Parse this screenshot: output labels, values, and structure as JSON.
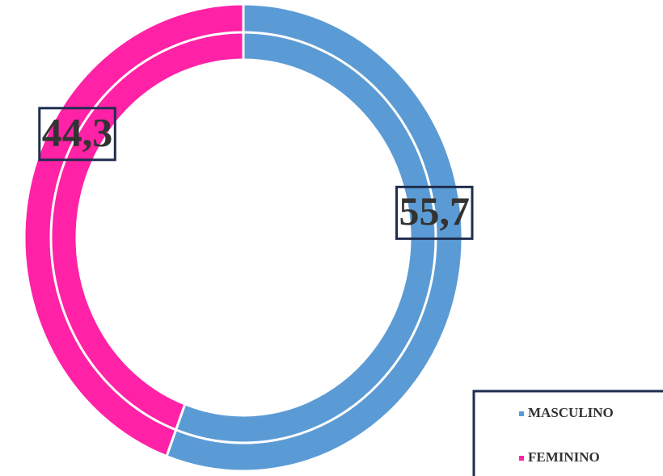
{
  "chart_data": {
    "type": "donut",
    "categories": [
      "MASCULINO",
      "FEMININO"
    ],
    "values": [
      55.7,
      44.3
    ],
    "value_labels": [
      "55,7",
      "44,3"
    ],
    "colors": [
      "#5b9bd5",
      "#ff22a6"
    ],
    "legend": "bottom-right"
  }
}
